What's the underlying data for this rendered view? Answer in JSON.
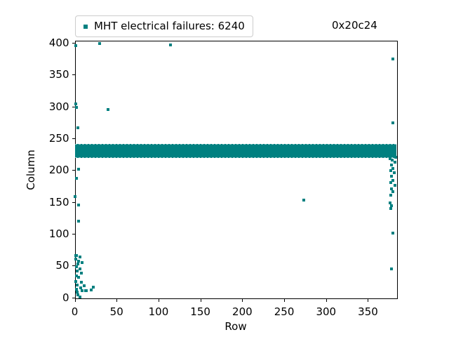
{
  "figure": {
    "legend": {
      "label": "MHT electrical failures: 6240"
    },
    "annotation": "0x20c24"
  },
  "colors": {
    "marker": "#008080",
    "spine": "#000000",
    "legend_border": "#cccccc"
  },
  "chart_data": {
    "type": "scatter",
    "title": "",
    "legend_label": "MHT electrical failures: 6240",
    "annotation_text": "0x20c24",
    "xlabel": "Row",
    "ylabel": "Column",
    "xlim": [
      0,
      383.5
    ],
    "ylim": [
      0,
      404
    ],
    "xticks": [
      0,
      50,
      100,
      150,
      200,
      250,
      300,
      350
    ],
    "yticks": [
      0,
      50,
      100,
      150,
      200,
      250,
      300,
      350,
      400
    ],
    "grid": false,
    "legend_position": "upper-left-outside",
    "marker": "square",
    "failure_count": 6240,
    "band": {
      "row_min": 0,
      "row_max": 383.5,
      "col_min": 221,
      "col_max": 239.5
    },
    "points": [
      [
        1,
        396
      ],
      [
        30,
        399
      ],
      [
        114,
        397
      ],
      [
        1,
        304
      ],
      [
        2,
        299
      ],
      [
        40,
        295
      ],
      [
        4,
        267
      ],
      [
        5,
        201
      ],
      [
        2,
        187
      ],
      [
        0,
        158
      ],
      [
        5,
        145
      ],
      [
        5,
        120
      ],
      [
        1,
        66
      ],
      [
        6,
        63
      ],
      [
        5,
        57
      ],
      [
        9,
        55
      ],
      [
        2,
        48
      ],
      [
        6,
        45
      ],
      [
        3,
        41
      ],
      [
        8,
        38
      ],
      [
        2,
        34
      ],
      [
        5,
        31
      ],
      [
        1,
        25
      ],
      [
        8,
        24
      ],
      [
        3,
        19
      ],
      [
        11,
        18
      ],
      [
        22,
        16
      ],
      [
        7,
        15
      ],
      [
        2,
        13
      ],
      [
        9,
        11
      ],
      [
        13,
        10
      ],
      [
        14,
        10
      ],
      [
        3,
        8
      ],
      [
        4,
        4
      ],
      [
        6,
        1
      ],
      [
        1,
        60
      ],
      [
        4,
        52
      ],
      [
        2,
        66
      ],
      [
        20,
        12
      ],
      [
        273,
        153
      ],
      [
        380,
        375
      ],
      [
        380,
        274
      ],
      [
        376,
        218
      ],
      [
        383,
        220
      ],
      [
        379,
        216
      ],
      [
        382,
        213
      ],
      [
        378,
        208
      ],
      [
        380,
        203
      ],
      [
        377,
        199
      ],
      [
        381,
        196
      ],
      [
        378,
        190
      ],
      [
        380,
        184
      ],
      [
        377,
        180
      ],
      [
        382,
        176
      ],
      [
        378,
        170
      ],
      [
        380,
        166
      ],
      [
        377,
        161
      ],
      [
        376,
        148
      ],
      [
        378,
        144
      ],
      [
        377,
        140
      ],
      [
        380,
        101
      ],
      [
        378,
        45
      ]
    ]
  }
}
